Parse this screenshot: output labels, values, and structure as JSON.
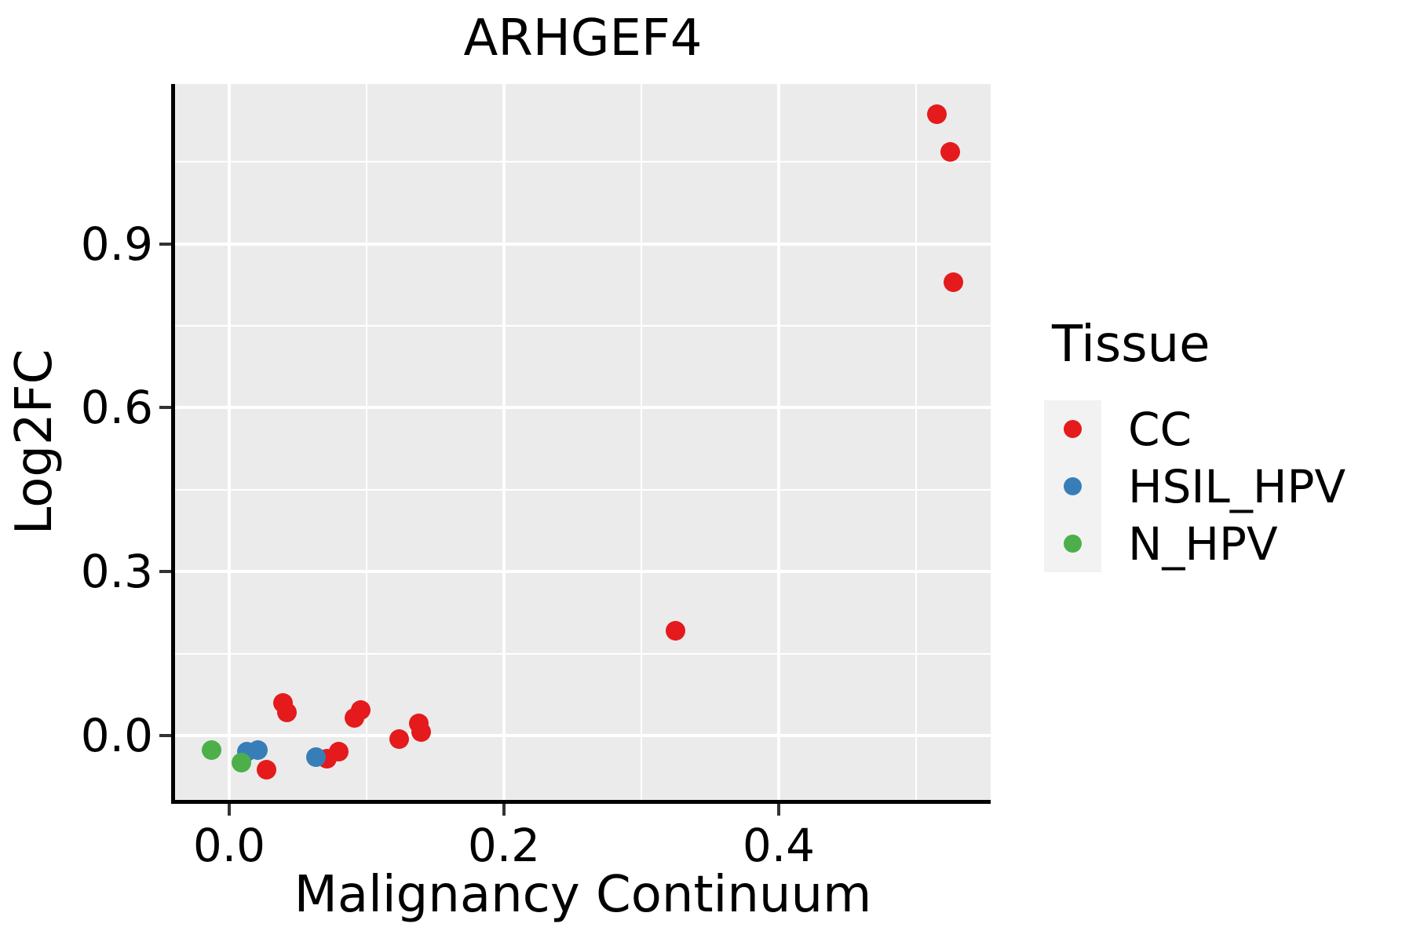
{
  "chart_data": {
    "type": "scatter",
    "title": "ARHGEF4",
    "xlabel": "Malignancy Continuum",
    "ylabel": "Log2FC",
    "legend_title": "Tissue",
    "xlim": [
      -0.0394,
      0.5543
    ],
    "ylim": [
      -0.1178,
      1.1925
    ],
    "x_ticks": [
      0.0,
      0.2,
      0.4
    ],
    "x_tick_labels": [
      "0.0",
      "0.2",
      "0.4"
    ],
    "x_minor_ticks": [
      0.1,
      0.3,
      0.5
    ],
    "y_ticks": [
      0.0,
      0.3,
      0.6,
      0.9
    ],
    "y_tick_labels": [
      "0.0",
      "0.3",
      "0.6",
      "0.9"
    ],
    "y_minor_ticks": [
      0.15,
      0.45,
      0.75,
      1.05
    ],
    "grid": "on",
    "legend_position": "right",
    "panel_background": "#EBEBEB",
    "gridline_color": "#ffffff",
    "axis_line_color": "#000000",
    "series": [
      {
        "name": "CC",
        "color": "#E41A1C",
        "points": [
          [
            0.027,
            -0.062
          ],
          [
            0.039,
            0.059
          ],
          [
            0.042,
            0.042
          ],
          [
            0.071,
            -0.043
          ],
          [
            0.08,
            -0.029
          ],
          [
            0.091,
            0.032
          ],
          [
            0.096,
            0.046
          ],
          [
            0.124,
            -0.006
          ],
          [
            0.138,
            0.022
          ],
          [
            0.14,
            0.007
          ],
          [
            0.325,
            0.192
          ],
          [
            0.515,
            1.137
          ],
          [
            0.525,
            1.068
          ],
          [
            0.527,
            0.83
          ]
        ]
      },
      {
        "name": "HSIL_HPV",
        "color": "#377EB8",
        "points": [
          [
            0.013,
            -0.029
          ],
          [
            0.021,
            -0.026
          ],
          [
            0.063,
            -0.04
          ]
        ]
      },
      {
        "name": "N_HPV",
        "color": "#4DAF4A",
        "points": [
          [
            -0.013,
            -0.026
          ],
          [
            0.009,
            -0.05
          ]
        ]
      }
    ]
  }
}
